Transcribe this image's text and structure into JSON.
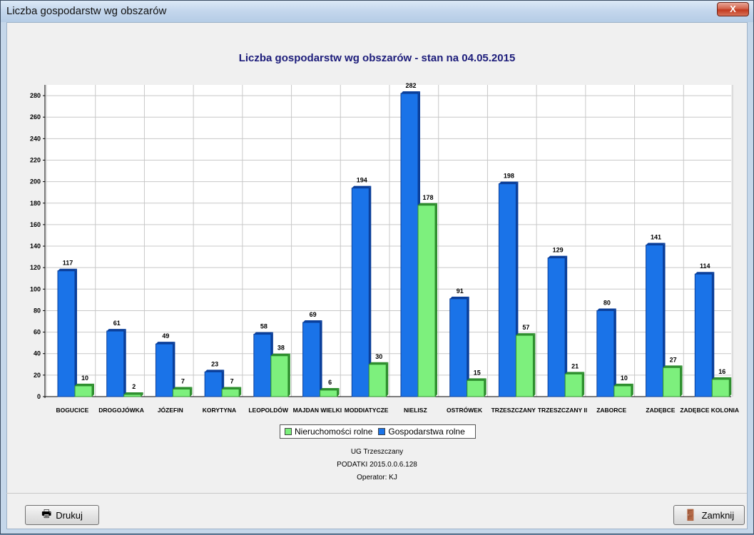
{
  "window": {
    "title": "Liczba gospodarstw wg obszarów",
    "close_label": "X"
  },
  "chart_title": "Liczba gospodarstw wg obszarów - stan na 04.05.2015",
  "footer": {
    "line1": "UG Trzeszczany",
    "line2": "PODATKI 2015.0.0.6.128",
    "line3": "Operator: KJ"
  },
  "buttons": {
    "print_label": "Drukuj",
    "close_label": "Zamknij"
  },
  "colors": {
    "blue": "#1a73e8",
    "blue_dark": "#0b3f9a",
    "green": "#7df07d",
    "green_dark": "#2f8f2f"
  },
  "icons": {
    "print": "printer-icon",
    "close": "exit-door-icon"
  },
  "chart_data": {
    "type": "bar",
    "title": "Liczba gospodarstw wg obszarów - stan na 04.05.2015",
    "categories": [
      "BOGUCICE",
      "DROGOJÓWKA",
      "JÓZEFIN",
      "KORYTYNA",
      "LEOPOLDÓW",
      "MAJDAN WIELKI",
      "MODDIATYCZE",
      "NIELISZ",
      "OSTRÓWEK",
      "TRZESZCZANY",
      "TRZESZCZANY II",
      "ZABORCE",
      "ZADĘBCE",
      "ZADĘBCE KOLONIA"
    ],
    "series": [
      {
        "name": "Gospodarstwa rolne",
        "values": [
          117,
          61,
          49,
          23,
          58,
          69,
          194,
          282,
          91,
          198,
          129,
          80,
          141,
          114
        ]
      },
      {
        "name": "Nieruchomości rolne",
        "values": [
          10,
          2,
          7,
          7,
          38,
          6,
          30,
          178,
          15,
          57,
          21,
          10,
          27,
          16
        ]
      }
    ],
    "legend": [
      "Nieruchomości rolne",
      "Gospodarstwa rolne"
    ],
    "legend_position": "bottom",
    "ylim": [
      0,
      290
    ],
    "yticks": [
      0,
      20,
      40,
      60,
      80,
      100,
      120,
      140,
      160,
      180,
      200,
      220,
      240,
      260,
      280
    ],
    "grid": true
  }
}
